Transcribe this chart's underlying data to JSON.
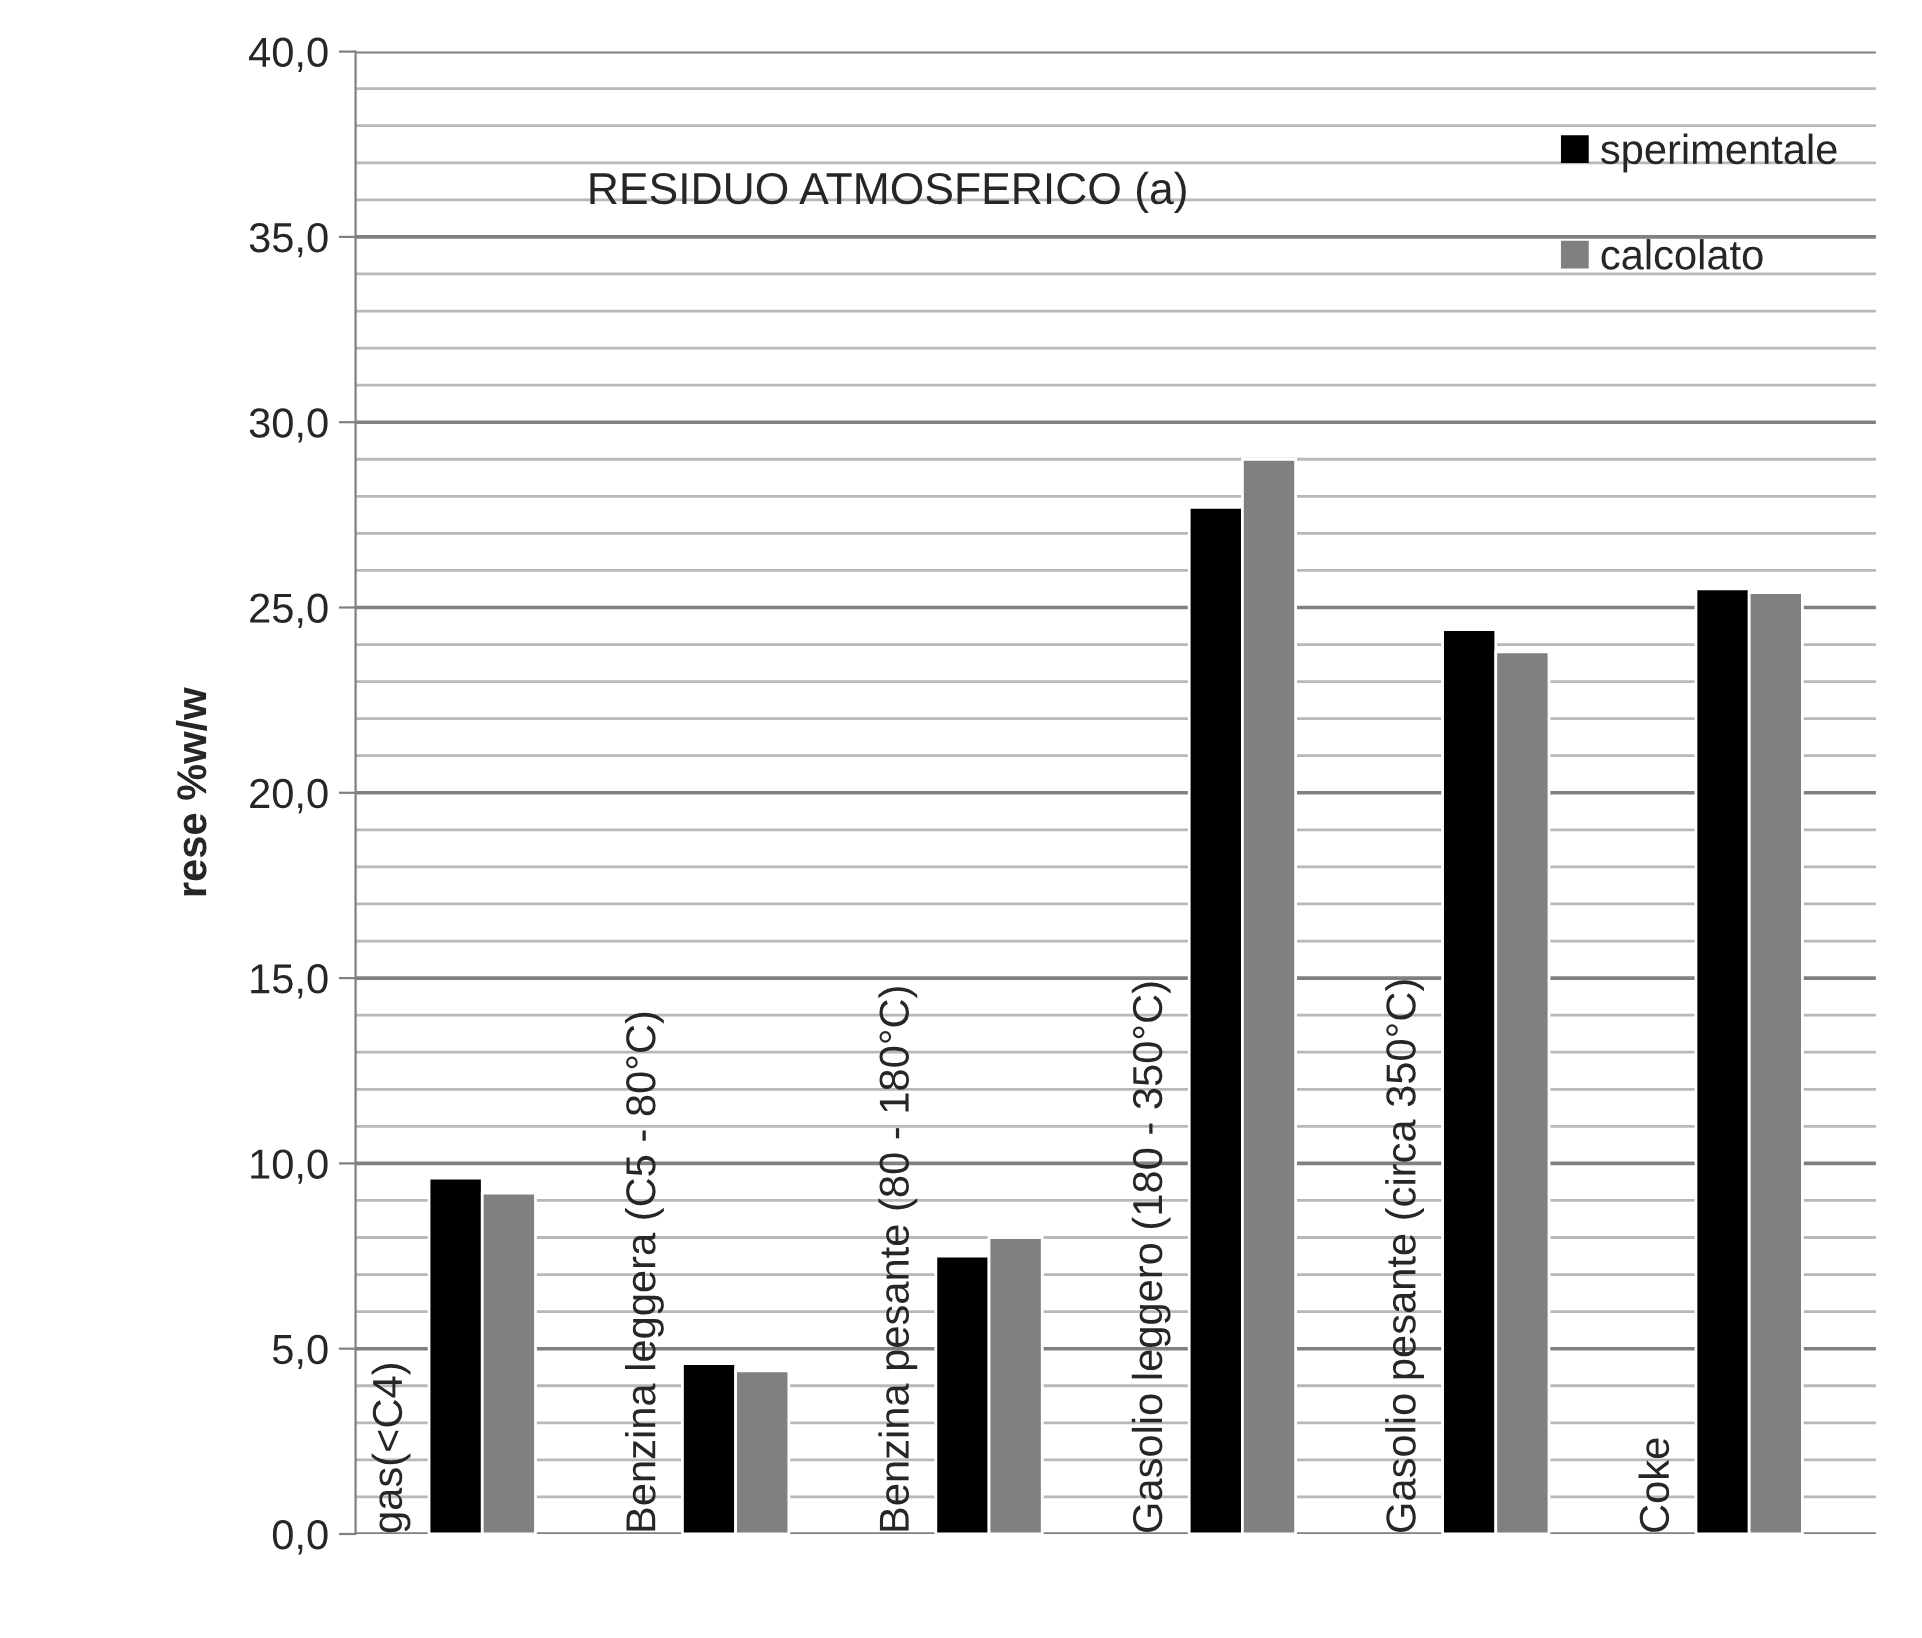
{
  "chart_data": {
    "type": "bar",
    "categories": [
      "gas(<C4)",
      "Benzina leggera (C5 - 80°C)",
      "Benzina pesante (80 - 180°C)",
      "Gasolio leggero (180 - 350°C)",
      "Gasolio pesante (circa 350°C)",
      "Coke"
    ],
    "series": [
      {
        "name": "sperimentale",
        "color": "#000000",
        "values": [
          9.6,
          4.6,
          7.5,
          27.7,
          24.4,
          25.5
        ]
      },
      {
        "name": "calcolato",
        "color": "#808080",
        "values": [
          9.2,
          4.4,
          8.0,
          29.0,
          23.8,
          25.4
        ]
      }
    ],
    "ylabel": "rese %w/w",
    "annotations": [
      "RESIDUO ATMOSFERICO (a)"
    ],
    "ylim": [
      0,
      40
    ],
    "yticks": [
      {
        "value": 0,
        "label": "0,0"
      },
      {
        "value": 5,
        "label": "5,0"
      },
      {
        "value": 10,
        "label": "10,0"
      },
      {
        "value": 15,
        "label": "15,0"
      },
      {
        "value": 20,
        "label": "20,0"
      },
      {
        "value": 25,
        "label": "25,0"
      },
      {
        "value": 30,
        "label": "30,0"
      },
      {
        "value": 35,
        "label": "35,0"
      },
      {
        "value": 40,
        "label": "40,0"
      }
    ],
    "grid": "y",
    "legend": "top right"
  }
}
